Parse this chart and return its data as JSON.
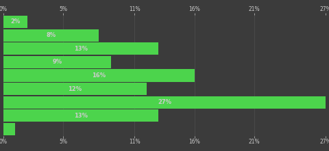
{
  "values": [
    2,
    8,
    13,
    9,
    16,
    12,
    27,
    13,
    1
  ],
  "bar_color": "#4cd44c",
  "background_color": "#3b3b3b",
  "text_color": "#cccccc",
  "grid_color": "#505050",
  "xlim": [
    0,
    27
  ],
  "xticks": [
    0,
    5,
    11,
    16,
    21,
    27
  ],
  "xtick_labels": [
    "0%",
    "5%",
    "11%",
    "16%",
    "21%",
    "27%"
  ],
  "bar_height": 0.92,
  "label_fontsize": 6.0,
  "tick_fontsize": 5.5
}
